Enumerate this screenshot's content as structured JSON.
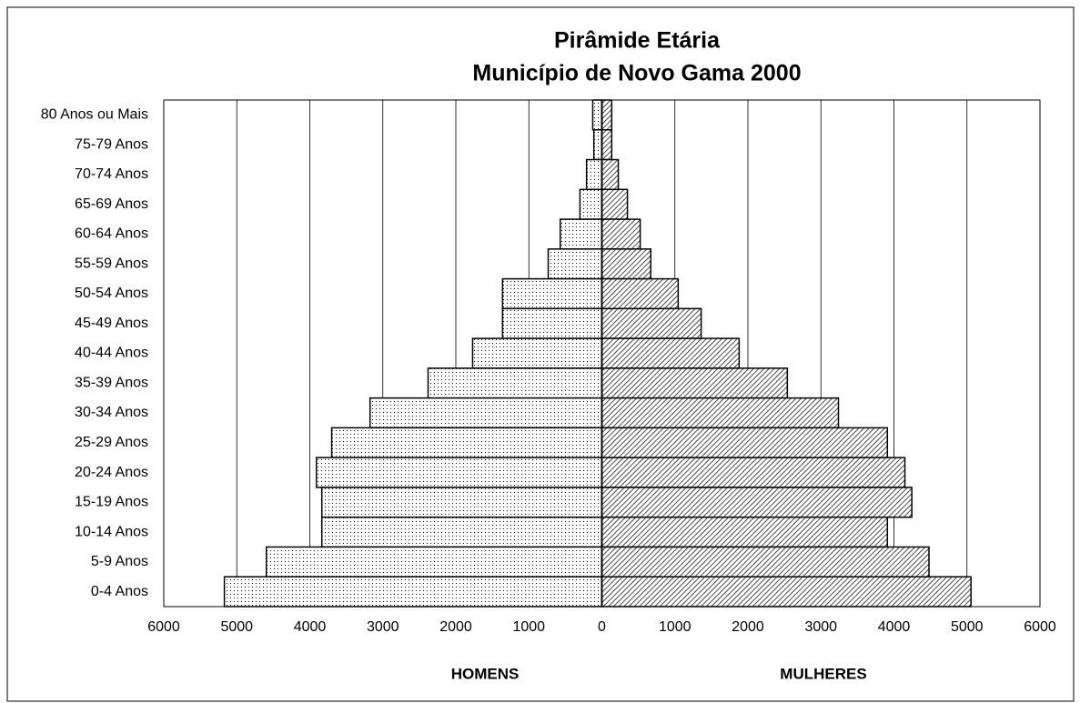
{
  "chart_data": {
    "type": "pyramid",
    "title": "Pirâmide Etária",
    "subtitle": "Município de Novo Gama  2000",
    "categories": [
      "80 Anos ou Mais",
      "75-79 Anos",
      "70-74 Anos",
      "65-69 Anos",
      "60-64 Anos",
      "55-59 Anos",
      "50-54 Anos",
      "45-49 Anos",
      "40-44 Anos",
      "35-39 Anos",
      "30-34 Anos",
      "25-29 Anos",
      "20-24 Anos",
      "15-19 Anos",
      "10-14 Anos",
      "5-9 Anos",
      "0-4 Anos"
    ],
    "series": [
      {
        "name": "HOMENS",
        "side": "left",
        "values": [
          125,
          110,
          210,
          300,
          570,
          735,
          1360,
          1360,
          1770,
          2380,
          3175,
          3700,
          3910,
          3835,
          3835,
          4595,
          5170
        ]
      },
      {
        "name": "MULHERES",
        "side": "right",
        "values": [
          135,
          135,
          225,
          350,
          525,
          670,
          1045,
          1360,
          1880,
          2540,
          3240,
          3910,
          4150,
          4245,
          3910,
          4480,
          5055
        ]
      }
    ],
    "xlim": [
      -6000,
      6000
    ],
    "xticks": [
      {
        "value": -6000,
        "label": "6000"
      },
      {
        "value": -5000,
        "label": "5000"
      },
      {
        "value": -4000,
        "label": "4000"
      },
      {
        "value": -3000,
        "label": "3000"
      },
      {
        "value": -2000,
        "label": "2000"
      },
      {
        "value": -1000,
        "label": "1000"
      },
      0,
      1000,
      2000,
      3000,
      4000,
      5000,
      6000
    ],
    "grid": true
  }
}
